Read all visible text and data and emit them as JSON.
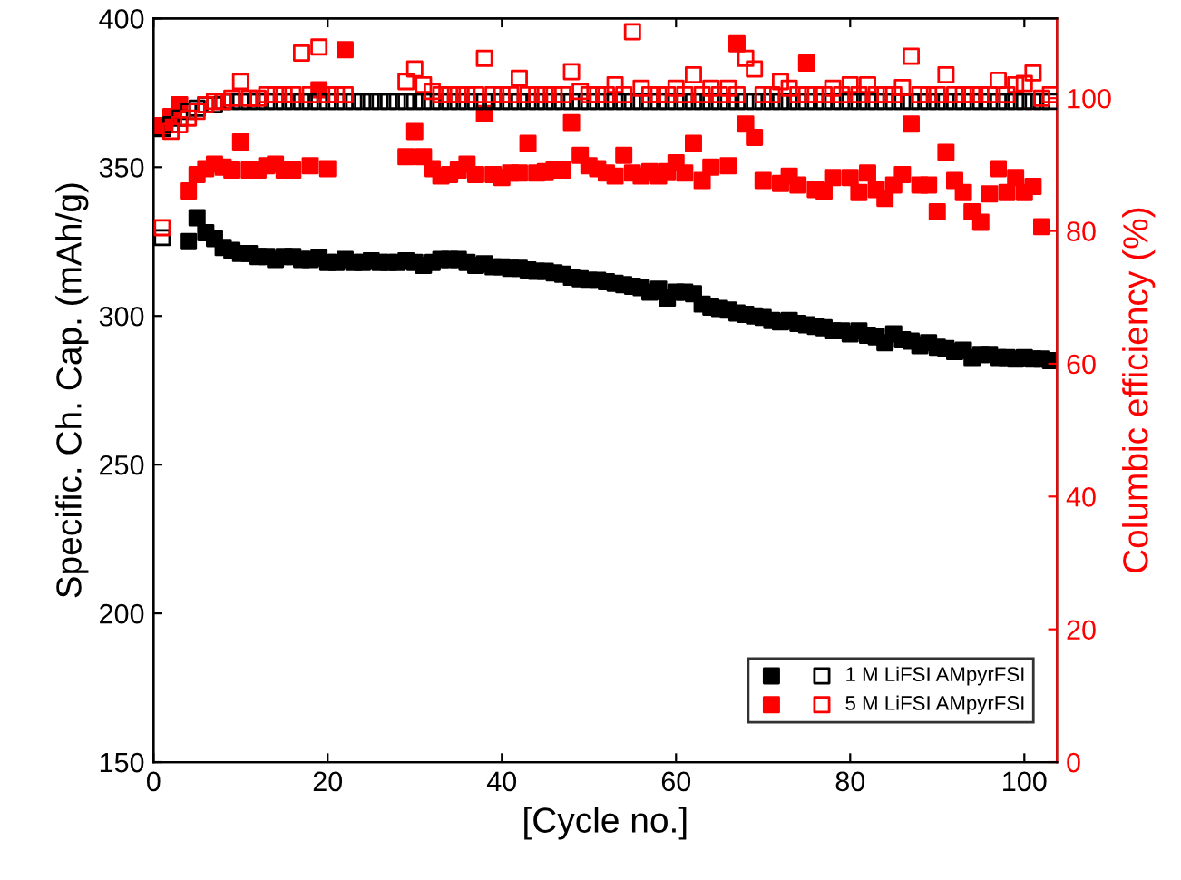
{
  "chart_data": {
    "type": "scatter",
    "xlabel": "[Cycle no.]",
    "ylabel": "Specific. Ch. Cap. (mAh/g)",
    "y2label": "Columbic efficiency (%)",
    "xlim": [
      0,
      103.75
    ],
    "xticks": [
      0,
      20,
      40,
      60,
      80,
      100
    ],
    "ylim": [
      150,
      400
    ],
    "yticks": [
      150,
      200,
      250,
      300,
      350,
      400
    ],
    "y2lim": [
      0,
      112
    ],
    "y2ticks": [
      0,
      20,
      40,
      60,
      80,
      100
    ],
    "marker": "square",
    "legend": "bottom right",
    "grid": false,
    "series": [
      {
        "color": "#000000",
        "axis": "y",
        "x": [
          1,
          4,
          5,
          6,
          7,
          8,
          9,
          10,
          11,
          12,
          13,
          14,
          15,
          16,
          17,
          18,
          19,
          20,
          21,
          22,
          23,
          24,
          25,
          26,
          27,
          28,
          29,
          30,
          31,
          32,
          33,
          34,
          35,
          36,
          37,
          38,
          39,
          40,
          41,
          42,
          43,
          44,
          45,
          46,
          47,
          48,
          49,
          50,
          51,
          52,
          53,
          54,
          55,
          56,
          57,
          58,
          59,
          60,
          61,
          62,
          63,
          64,
          65,
          66,
          67,
          68,
          69,
          70,
          71,
          72,
          73,
          74,
          75,
          76,
          77,
          78,
          79,
          80,
          81,
          82,
          83,
          84,
          85,
          86,
          87,
          88,
          89,
          90,
          91,
          92,
          93,
          94,
          95,
          96,
          97,
          98,
          99,
          100,
          101,
          102,
          103
        ],
        "values": [
          363,
          325,
          333,
          328,
          326,
          323,
          322,
          321,
          321,
          320,
          320,
          319,
          320,
          320,
          319,
          319,
          319.5,
          318,
          318,
          319,
          318,
          318,
          318.5,
          318,
          318,
          318,
          318.5,
          318,
          317,
          318,
          319,
          319,
          319,
          318,
          317,
          317.5,
          316.5,
          316.5,
          316,
          316,
          315.5,
          315,
          315,
          314.5,
          314,
          313,
          312.5,
          312,
          312,
          311.5,
          311,
          310.5,
          310,
          309.5,
          308,
          309,
          306,
          308,
          308,
          307.5,
          304,
          303,
          302.5,
          302,
          301,
          300.5,
          300,
          299.5,
          298.5,
          298,
          298.5,
          297.5,
          297,
          296.5,
          296,
          295,
          295,
          294,
          295,
          293.5,
          293,
          291,
          294,
          292,
          291.5,
          290,
          291,
          289.5,
          289,
          288,
          288.5,
          286,
          287,
          287,
          286,
          286,
          285.5,
          286,
          285.5,
          285.5,
          285
        ]
      },
      {
        "name": "1 M LiFSI AMpyrFSI",
        "color": "#000000",
        "axis": "y2",
        "x": [
          1,
          2,
          3,
          4,
          5,
          6,
          7,
          8,
          9,
          10,
          11,
          12,
          13,
          14,
          15,
          16,
          17,
          18,
          19,
          20,
          21,
          22,
          23,
          24,
          25,
          26,
          27,
          28,
          29,
          30,
          31,
          32,
          33,
          34,
          35,
          36,
          37,
          38,
          39,
          40,
          41,
          42,
          43,
          44,
          45,
          46,
          47,
          48,
          49,
          50,
          51,
          52,
          53,
          54,
          55,
          56,
          57,
          58,
          59,
          60,
          61,
          62,
          63,
          64,
          65,
          66,
          67,
          68,
          69,
          70,
          71,
          72,
          73,
          74,
          75,
          76,
          77,
          78,
          79,
          80,
          81,
          82,
          83,
          84,
          85,
          86,
          87,
          88,
          89,
          90,
          91,
          92,
          93,
          94,
          95,
          96,
          97,
          98,
          99,
          100,
          101,
          102,
          103
        ],
        "values": [
          79,
          96,
          97,
          98,
          98.5,
          99,
          99,
          99.5,
          99.5,
          99.5,
          99.5,
          99.5,
          99.5,
          99.5,
          99.5,
          99.5,
          99.5,
          99.5,
          99.5,
          99.5,
          99.5,
          99.5,
          99.5,
          99.5,
          99.5,
          99.5,
          99.5,
          99.5,
          99.5,
          99.5,
          99.5,
          99.5,
          99.5,
          99.5,
          99.5,
          99.5,
          99.5,
          99.5,
          99.5,
          99.5,
          99.5,
          99.5,
          99.5,
          99.5,
          99.5,
          99.5,
          99.5,
          99.5,
          99.5,
          99.5,
          99.5,
          99.5,
          99.5,
          99.5,
          99.5,
          99.5,
          99.5,
          99.5,
          99.5,
          99.5,
          99.5,
          99.5,
          99.5,
          99.5,
          99.5,
          99.5,
          99.5,
          99.5,
          99.5,
          99.5,
          99.5,
          99.5,
          99.5,
          99.5,
          99.5,
          99.5,
          99.5,
          99.5,
          99.5,
          99.5,
          99.5,
          99.5,
          99.5,
          99.5,
          99.5,
          99.5,
          99.5,
          99.5,
          99.5,
          99.5,
          99.5,
          99.5,
          99.5,
          99.5,
          99.5,
          99.5,
          99.5,
          99.5,
          99.5,
          99.5,
          99.5,
          99.5,
          99.5
        ]
      },
      {
        "color": "#ff0000",
        "axis": "y",
        "x": [
          1,
          2,
          3,
          4,
          5,
          6,
          7,
          8,
          9,
          10,
          11,
          12,
          13,
          14,
          15,
          16,
          18,
          19,
          20,
          22,
          29,
          30,
          31,
          32,
          33,
          34,
          35,
          36,
          37,
          38,
          39,
          40,
          41,
          42,
          43,
          44,
          45,
          46,
          47,
          48,
          49,
          50,
          51,
          52,
          53,
          54,
          55,
          56,
          57,
          58,
          59,
          60,
          61,
          62,
          63,
          64,
          66,
          67,
          68,
          69,
          70,
          72,
          73,
          74,
          75,
          76,
          77,
          78,
          80,
          81,
          82,
          83,
          84,
          85,
          86,
          87,
          88,
          89,
          90,
          91,
          92,
          93,
          94,
          95,
          96,
          97,
          98,
          99,
          100,
          101,
          102
        ],
        "values": [
          364,
          367,
          371,
          342,
          347.5,
          349.5,
          351,
          350,
          349,
          358.5,
          349,
          349,
          350.5,
          351,
          349,
          349,
          350.5,
          376,
          349.5,
          389.5,
          353.5,
          362,
          353.5,
          349.5,
          347,
          347.5,
          349,
          351,
          347.5,
          368,
          347.5,
          346.5,
          348,
          348,
          358,
          348,
          348.5,
          349,
          349,
          365,
          354,
          350.5,
          349.5,
          348,
          347,
          354,
          348,
          347,
          348.5,
          347,
          348.5,
          351.5,
          348,
          358,
          345.5,
          350,
          350.5,
          391.5,
          364.5,
          360,
          345.5,
          344.5,
          347,
          344,
          385,
          342.5,
          342,
          346.5,
          346.5,
          341.5,
          348,
          342.5,
          339.5,
          344,
          347.5,
          364.5,
          344,
          344,
          335,
          355,
          345.5,
          341.5,
          335,
          331.5,
          341,
          349.5,
          341.5,
          346.5,
          341.5,
          343.5,
          330
        ]
      },
      {
        "name": "5 M LiFSI AMpyrFSI",
        "color": "#ff0000",
        "axis": "y2",
        "x": [
          1,
          2,
          3,
          4,
          5,
          6,
          7,
          8,
          9,
          10,
          11,
          12,
          13,
          14,
          15,
          16,
          17,
          18,
          19,
          20,
          21,
          22,
          29,
          30,
          31,
          32,
          33,
          34,
          35,
          36,
          37,
          38,
          39,
          40,
          41,
          42,
          43,
          44,
          45,
          46,
          47,
          48,
          49,
          50,
          51,
          52,
          53,
          54,
          55,
          56,
          57,
          58,
          59,
          60,
          61,
          62,
          63,
          64,
          65,
          66,
          67,
          68,
          69,
          70,
          71,
          72,
          73,
          74,
          75,
          76,
          77,
          78,
          79,
          80,
          81,
          82,
          83,
          84,
          85,
          86,
          87,
          88,
          89,
          90,
          91,
          92,
          93,
          94,
          95,
          96,
          97,
          98,
          99,
          100,
          101,
          102,
          103
        ],
        "values": [
          80.5,
          95,
          96,
          97,
          98,
          99,
          99.5,
          99.5,
          100,
          102.5,
          100,
          100,
          100.5,
          100.5,
          100.5,
          100.5,
          106.8,
          100.5,
          107.7,
          100.5,
          100.5,
          100.5,
          102.5,
          104.4,
          102,
          101,
          100.5,
          100.5,
          100.5,
          100.5,
          100.5,
          106,
          100.5,
          100.5,
          100.5,
          103,
          100.5,
          100.5,
          100.5,
          100.5,
          100.5,
          104,
          101,
          100.5,
          100.5,
          100.5,
          102,
          100.5,
          110,
          101.5,
          100.5,
          100.5,
          100.5,
          101.5,
          100.5,
          103.5,
          100.5,
          101.5,
          100.5,
          101.5,
          100.5,
          106,
          104.4,
          100.5,
          100.5,
          102.5,
          101.5,
          100.5,
          100.5,
          100.5,
          100.5,
          101.5,
          100.5,
          102,
          100.5,
          102,
          100.5,
          100.5,
          100.5,
          101.6,
          106.3,
          100.5,
          100.5,
          100.5,
          103.5,
          100.5,
          100.5,
          100.5,
          100.5,
          100.5,
          102.7,
          100.5,
          102,
          102.2,
          103.8,
          100,
          100.5
        ]
      }
    ]
  }
}
